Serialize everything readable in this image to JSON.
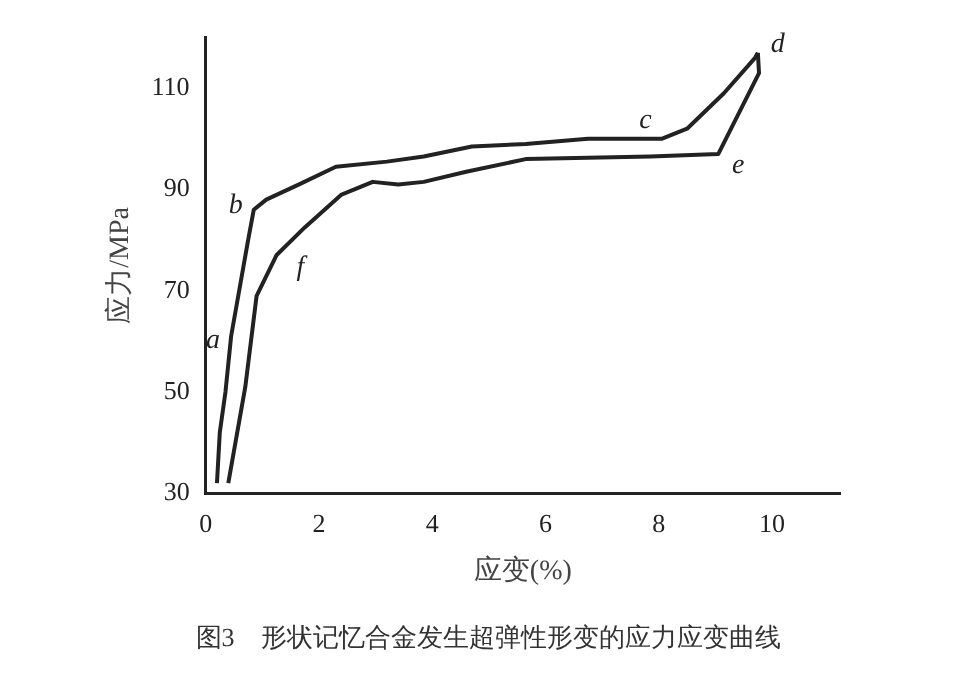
{
  "chart_data": {
    "type": "line",
    "xlabel": "应变(%)",
    "ylabel": "应力/MPa",
    "xlim": [
      0,
      11.2
    ],
    "ylim": [
      30,
      120
    ],
    "xticks": [
      0,
      2,
      4,
      6,
      8,
      10
    ],
    "yticks": [
      30,
      50,
      70,
      90,
      110
    ],
    "grid": false,
    "legend": false,
    "marker": "none",
    "line_style": "solid",
    "series": [
      {
        "color": "#222222",
        "x": [
          0.2,
          0.25,
          0.35,
          0.45,
          0.75,
          0.85,
          1.07,
          1.65,
          2.3,
          3.2,
          3.85,
          4.7,
          5.65,
          6.75,
          8.05,
          8.5,
          9.15,
          9.7,
          9.75
        ],
        "values": [
          32,
          42,
          50,
          61,
          80,
          86,
          88,
          91,
          94.5,
          95.5,
          96.5,
          98.5,
          99,
          100,
          100,
          102,
          109,
          116,
          117
        ]
      },
      {
        "color": "#222222",
        "x": [
          9.75,
          9.77,
          9.05,
          7.85,
          5.65,
          4.6,
          3.85,
          3.4,
          2.95,
          2.4,
          1.75,
          1.25,
          0.9,
          0.7,
          0.4
        ],
        "values": [
          117,
          113,
          97,
          96.5,
          96,
          93.5,
          91.5,
          91,
          91.5,
          89,
          82.5,
          77,
          69,
          51,
          32
        ]
      }
    ],
    "annotations": [
      {
        "text": "a",
        "x": 0.45,
        "y": 61
      },
      {
        "text": "b",
        "x": 0.85,
        "y": 86
      },
      {
        "text": "c",
        "x": 8.05,
        "y": 100
      },
      {
        "text": "d",
        "x": 9.75,
        "y": 117
      },
      {
        "text": "e",
        "x": 9.05,
        "y": 97
      },
      {
        "text": "f",
        "x": 1.25,
        "y": 77
      },
      "图3　形状记忆合金发生超弹性形变的应力应变曲线"
    ]
  }
}
